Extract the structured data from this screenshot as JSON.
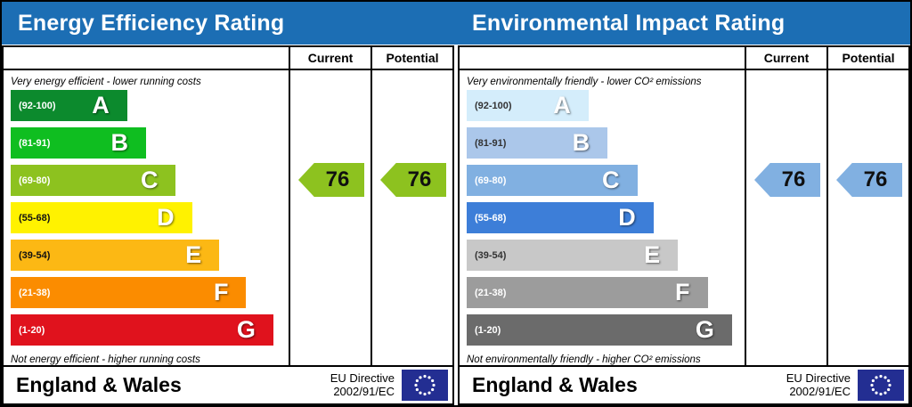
{
  "header": {
    "titles": [
      "Energy Efficiency Rating",
      "Environmental Impact Rating"
    ]
  },
  "columns": {
    "current": "Current",
    "potential": "Potential"
  },
  "theme": {
    "header_bg": "#1c6eb4",
    "header_text": "#ffffff",
    "eu_flag_bg": "#232e92",
    "eu_flag_star": "#ffffff",
    "border": "#000000",
    "energy_arrow": "#8dc21f",
    "environmental_arrow": "#81b0e1"
  },
  "panels": [
    {
      "name": "energy-efficiency",
      "top_note": "Very energy efficient - lower running costs",
      "bottom_note": "Not energy efficient - higher running costs",
      "bands": [
        {
          "letter": "A",
          "range": "(92-100)",
          "color": "#0c8a2d",
          "text_color": "#ffffff",
          "width_pct": 43
        },
        {
          "letter": "B",
          "range": "(81-91)",
          "color": "#0fbe20",
          "text_color": "#ffffff",
          "width_pct": 50
        },
        {
          "letter": "C",
          "range": "(69-80)",
          "color": "#8dc21f",
          "text_color": "#ffffff",
          "width_pct": 61
        },
        {
          "letter": "D",
          "range": "(55-68)",
          "color": "#fff200",
          "text_color": "#111111",
          "width_pct": 67
        },
        {
          "letter": "E",
          "range": "(39-54)",
          "color": "#fcb814",
          "text_color": "#111111",
          "width_pct": 77
        },
        {
          "letter": "F",
          "range": "(21-38)",
          "color": "#fb8c00",
          "text_color": "#ffffff",
          "width_pct": 87
        },
        {
          "letter": "G",
          "range": "(1-20)",
          "color": "#e0121d",
          "text_color": "#ffffff",
          "width_pct": 97
        }
      ],
      "current": {
        "value": "76",
        "color": "#8dc21f",
        "band": "C"
      },
      "potential": {
        "value": "76",
        "color": "#8dc21f",
        "band": "C"
      },
      "footer": {
        "region": "England & Wales",
        "directive_line1": "EU Directive",
        "directive_line2": "2002/91/EC"
      }
    },
    {
      "name": "environmental-impact",
      "top_note": "Very environmentally friendly - lower CO² emissions",
      "bottom_note": "Not environmentally friendly - higher CO² emissions",
      "bands": [
        {
          "letter": "A",
          "range": "(92-100)",
          "color": "#d4edfb",
          "text_color": "#333333",
          "width_pct": 45
        },
        {
          "letter": "B",
          "range": "(81-91)",
          "color": "#abc7ea",
          "text_color": "#333333",
          "width_pct": 52
        },
        {
          "letter": "C",
          "range": "(69-80)",
          "color": "#81b0e1",
          "text_color": "#ffffff",
          "width_pct": 63
        },
        {
          "letter": "D",
          "range": "(55-68)",
          "color": "#3d7ed8",
          "text_color": "#ffffff",
          "width_pct": 69
        },
        {
          "letter": "E",
          "range": "(39-54)",
          "color": "#c8c8c8",
          "text_color": "#333333",
          "width_pct": 78
        },
        {
          "letter": "F",
          "range": "(21-38)",
          "color": "#9c9c9c",
          "text_color": "#ffffff",
          "width_pct": 89
        },
        {
          "letter": "G",
          "range": "(1-20)",
          "color": "#6b6b6b",
          "text_color": "#ffffff",
          "width_pct": 98
        }
      ],
      "current": {
        "value": "76",
        "color": "#81b0e1",
        "band": "C"
      },
      "potential": {
        "value": "76",
        "color": "#81b0e1",
        "band": "C"
      },
      "footer": {
        "region": "England & Wales",
        "directive_line1": "EU Directive",
        "directive_line2": "2002/91/EC"
      }
    }
  ],
  "chart_data": [
    {
      "type": "bar",
      "title": "Energy Efficiency Rating",
      "categories": [
        "A (92-100)",
        "B (81-91)",
        "C (69-80)",
        "D (55-68)",
        "E (39-54)",
        "F (21-38)",
        "G (1-20)"
      ],
      "band_bar_relative_lengths_pct": [
        43,
        50,
        61,
        67,
        77,
        87,
        97
      ],
      "current": 76,
      "potential": 76,
      "current_band": "C",
      "potential_band": "C",
      "top_note": "Very energy efficient - lower running costs",
      "bottom_note": "Not energy efficient - higher running costs",
      "region": "England & Wales",
      "directive": "EU Directive 2002/91/EC",
      "legend_position": "right-columns",
      "grid": false
    },
    {
      "type": "bar",
      "title": "Environmental Impact Rating",
      "categories": [
        "A (92-100)",
        "B (81-91)",
        "C (69-80)",
        "D (55-68)",
        "E (39-54)",
        "F (21-38)",
        "G (1-20)"
      ],
      "band_bar_relative_lengths_pct": [
        45,
        52,
        63,
        69,
        78,
        89,
        98
      ],
      "current": 76,
      "potential": 76,
      "current_band": "C",
      "potential_band": "C",
      "top_note": "Very environmentally friendly - lower CO² emissions",
      "bottom_note": "Not environmentally friendly - higher CO² emissions",
      "region": "England & Wales",
      "directive": "EU Directive 2002/91/EC",
      "legend_position": "right-columns",
      "grid": false
    }
  ]
}
